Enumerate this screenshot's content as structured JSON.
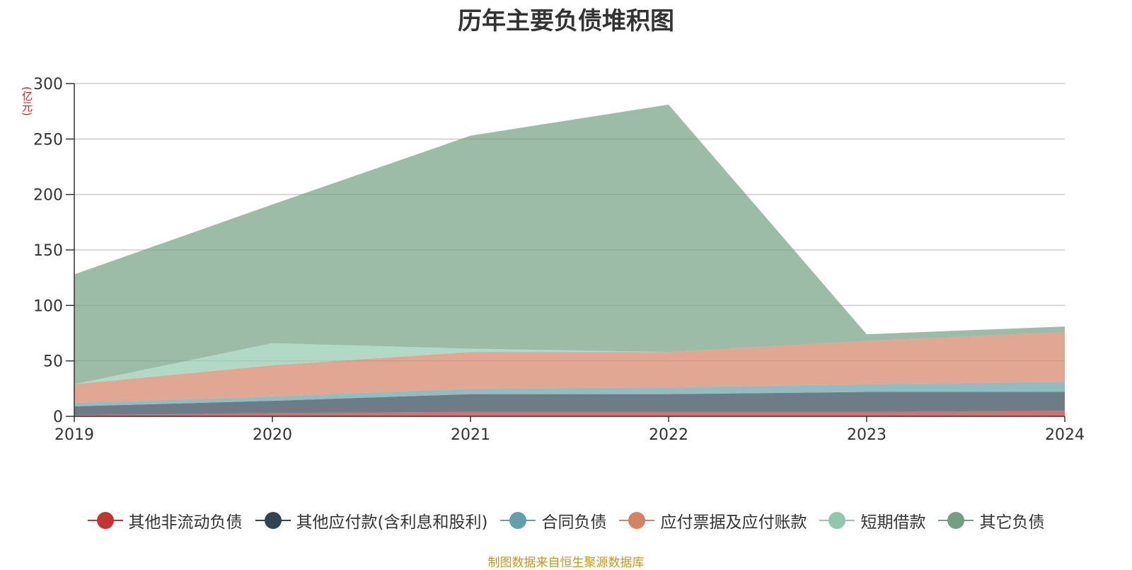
{
  "chart_data": {
    "type": "area",
    "stacked": true,
    "title": "历年主要负债堆积图",
    "unit_label": "(亿元)",
    "categories": [
      "2019",
      "2020",
      "2021",
      "2022",
      "2023",
      "2024"
    ],
    "ylim": [
      0,
      300
    ],
    "yticks": [
      0,
      50,
      100,
      150,
      200,
      250,
      300
    ],
    "grid": true,
    "legend_position": "bottom",
    "series": [
      {
        "name": "其他非流动负债",
        "color": "#c23531",
        "values": [
          1,
          3,
          4,
          4,
          4,
          5
        ]
      },
      {
        "name": "其他应付款(含利息和股利)",
        "color": "#2f4554",
        "values": [
          8,
          11,
          16,
          16,
          18,
          17
        ]
      },
      {
        "name": "合同负债",
        "color": "#61a0a8",
        "values": [
          3,
          4,
          5,
          6,
          7,
          9
        ]
      },
      {
        "name": "应付票据及应付账款",
        "color": "#d48265",
        "values": [
          17,
          28,
          33,
          32,
          39,
          45
        ]
      },
      {
        "name": "短期借款",
        "color": "#91c7ae",
        "values": [
          0,
          20,
          3,
          0,
          0,
          0
        ]
      },
      {
        "name": "其它负债",
        "color": "#749f83",
        "values": [
          99,
          125,
          192,
          223,
          6,
          5
        ]
      }
    ]
  },
  "footer": {
    "source": "制图数据来自恒生聚源数据库"
  }
}
